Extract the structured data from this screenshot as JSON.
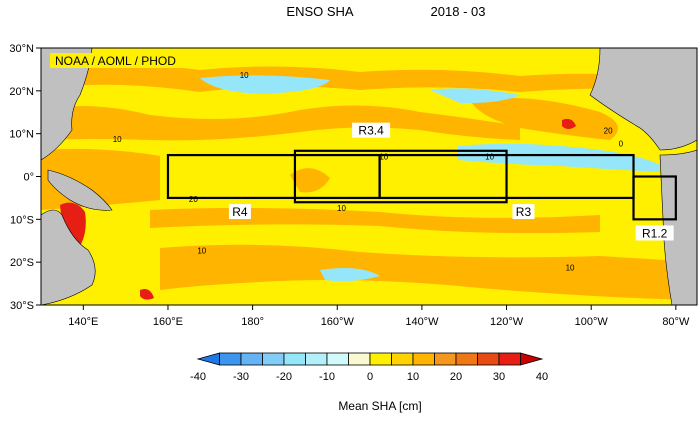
{
  "chart_data": {
    "type": "heatmap",
    "title": "ENSO SHA",
    "date": "2018 - 03",
    "source_label": "NOAA / AOML / PHOD",
    "colorbar_label": "Mean SHA [cm]",
    "xlim": [
      130,
      285
    ],
    "ylim": [
      -30,
      30
    ],
    "x_ticks": [
      {
        "value": 140,
        "label": "140°E"
      },
      {
        "value": 160,
        "label": "160°E"
      },
      {
        "value": 180,
        "label": "180°"
      },
      {
        "value": 200,
        "label": "160°W"
      },
      {
        "value": 220,
        "label": "140°W"
      },
      {
        "value": 240,
        "label": "120°W"
      },
      {
        "value": 260,
        "label": "100°W"
      },
      {
        "value": 280,
        "label": "80°W"
      }
    ],
    "y_ticks": [
      {
        "value": 30,
        "label": "30°N"
      },
      {
        "value": 20,
        "label": "20°N"
      },
      {
        "value": 10,
        "label": "10°N"
      },
      {
        "value": 0,
        "label": "0°"
      },
      {
        "value": -10,
        "label": "10°S"
      },
      {
        "value": -20,
        "label": "20°S"
      },
      {
        "value": -30,
        "label": "30°S"
      }
    ],
    "colorbar": {
      "levels": [
        -40,
        -35,
        -30,
        -25,
        -20,
        -15,
        -10,
        -5,
        0,
        5,
        10,
        15,
        20,
        25,
        30,
        35,
        40
      ],
      "tick_labels": [
        "-40",
        "-30",
        "-20",
        "-10",
        "0",
        "10",
        "20",
        "30",
        "40"
      ],
      "colors": [
        "#1e78e6",
        "#3c96f0",
        "#64b4f5",
        "#82cdf8",
        "#96e6fa",
        "#b4f0fa",
        "#d2fafa",
        "#fafad2",
        "#fff000",
        "#ffd200",
        "#ffb400",
        "#f5961e",
        "#f07814",
        "#e64b14",
        "#e61e14",
        "#c80000"
      ]
    },
    "regions": [
      {
        "name": "R1.2",
        "lon": [
          270,
          280
        ],
        "lat": [
          -10,
          0
        ]
      },
      {
        "name": "R3",
        "lon": [
          210,
          270
        ],
        "lat": [
          -5,
          5
        ]
      },
      {
        "name": "R3.4",
        "lon": [
          190,
          240
        ],
        "lat": [
          -6,
          6
        ]
      },
      {
        "name": "R4",
        "lon": [
          160,
          210
        ],
        "lat": [
          -5,
          5
        ]
      }
    ],
    "region_labels": [
      {
        "text": "R4",
        "lon": 177,
        "lat": -9
      },
      {
        "text": "R3",
        "lon": 244,
        "lat": -9
      },
      {
        "text": "R3.4",
        "lon": 208,
        "lat": 10
      },
      {
        "text": "R1.2",
        "lon": 275,
        "lat": -14
      }
    ],
    "contour_labels": [
      {
        "text": "10",
        "lon": 148,
        "lat": 8
      },
      {
        "text": "10",
        "lon": 211,
        "lat": 4
      },
      {
        "text": "10",
        "lon": 201,
        "lat": -8
      },
      {
        "text": "10",
        "lon": 236,
        "lat": 4
      },
      {
        "text": "10",
        "lon": 168,
        "lat": -18
      },
      {
        "text": "20",
        "lon": 166,
        "lat": -6
      },
      {
        "text": "20",
        "lon": 264,
        "lat": 10
      },
      {
        "text": "10",
        "lon": 255,
        "lat": -22
      },
      {
        "text": "0",
        "lon": 267,
        "lat": 7
      },
      {
        "text": "10",
        "lon": 178,
        "lat": 23
      }
    ]
  }
}
